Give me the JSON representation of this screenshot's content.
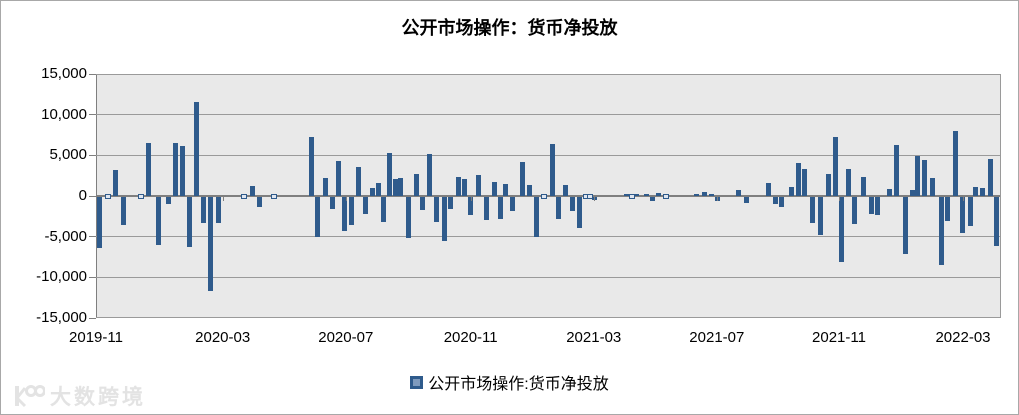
{
  "title": "公开市场操作：货币净投放",
  "legend": {
    "label": "公开市场操作:货币净投放"
  },
  "watermark": {
    "text": "大数跨境",
    "icon": "double-circle-logo"
  },
  "colors": {
    "bar": "#2f5b8c",
    "plot_bg": "#e9e9e9",
    "grid": "#9a9a9a",
    "axis": "#7f7f7f",
    "tiny_fill": "#dfe6f0",
    "watermark": "#e3e3e3"
  },
  "chart_data": {
    "type": "bar",
    "title": "公开市场操作：货币净投放",
    "series_name": "公开市场操作:货币净投放",
    "xlabel": "",
    "ylabel": "",
    "ylim": [
      -15000,
      15000
    ],
    "grid": true,
    "legend_position": "bottom",
    "y_ticks": [
      15000,
      10000,
      5000,
      0,
      -5000,
      -10000,
      -15000
    ],
    "y_tick_labels": [
      "15,000",
      "10,000",
      "5,000",
      "0",
      "-5,000",
      "-10,000",
      "-15,000"
    ],
    "x_tick_labels": [
      "2019-11",
      "2020-03",
      "2020-07",
      "2020-11",
      "2021-03",
      "2021-07",
      "2021-11",
      "2022-03"
    ],
    "x_tick_pos_pct": [
      0,
      14.0,
      27.6,
      41.4,
      55.0,
      68.6,
      82.1,
      95.8
    ],
    "bars_format": "[x_percent_of_plot_width, value]",
    "bars": [
      [
        0.4,
        -6300
      ],
      [
        1.3,
        -150
      ],
      [
        2.2,
        3200
      ],
      [
        3.0,
        -3500
      ],
      [
        5.0,
        -100
      ],
      [
        5.8,
        6500
      ],
      [
        6.9,
        -5900
      ],
      [
        8.0,
        -900
      ],
      [
        8.8,
        6500
      ],
      [
        9.6,
        6200
      ],
      [
        10.3,
        -6100
      ],
      [
        11.1,
        11500
      ],
      [
        11.9,
        -3200
      ],
      [
        12.7,
        -11500
      ],
      [
        13.5,
        -3200
      ],
      [
        16.4,
        -100
      ],
      [
        17.3,
        1200
      ],
      [
        18.1,
        -1200
      ],
      [
        19.7,
        -100
      ],
      [
        23.8,
        7200
      ],
      [
        24.5,
        -4900
      ],
      [
        25.4,
        2250
      ],
      [
        26.1,
        -1500
      ],
      [
        26.8,
        4300
      ],
      [
        27.5,
        -4200
      ],
      [
        28.2,
        -3500
      ],
      [
        29.0,
        3600
      ],
      [
        29.8,
        -2050
      ],
      [
        30.5,
        1000
      ],
      [
        31.2,
        1650
      ],
      [
        31.8,
        -3100
      ],
      [
        32.4,
        5300
      ],
      [
        33.1,
        2050
      ],
      [
        33.7,
        2250
      ],
      [
        34.5,
        -5050
      ],
      [
        35.4,
        2650
      ],
      [
        36.1,
        -1650
      ],
      [
        36.8,
        5200
      ],
      [
        37.6,
        -3100
      ],
      [
        38.5,
        -5450
      ],
      [
        39.2,
        -1450
      ],
      [
        40.0,
        2350
      ],
      [
        40.7,
        2050
      ],
      [
        41.4,
        -2250
      ],
      [
        42.3,
        2550
      ],
      [
        43.1,
        -2850
      ],
      [
        44.0,
        1750
      ],
      [
        44.7,
        -2650
      ],
      [
        45.3,
        1450
      ],
      [
        46.0,
        -1750
      ],
      [
        47.1,
        4200
      ],
      [
        47.9,
        1350
      ],
      [
        48.7,
        -4900
      ],
      [
        49.5,
        -150
      ],
      [
        50.4,
        6400
      ],
      [
        51.1,
        -2650
      ],
      [
        51.9,
        1350
      ],
      [
        52.6,
        -1750
      ],
      [
        53.4,
        -3800
      ],
      [
        54.1,
        -150
      ],
      [
        54.6,
        -100
      ],
      [
        55.1,
        -400
      ],
      [
        58.6,
        300
      ],
      [
        59.2,
        -200
      ],
      [
        59.7,
        300
      ],
      [
        60.8,
        250
      ],
      [
        61.5,
        -450
      ],
      [
        62.2,
        400
      ],
      [
        63.0,
        -200
      ],
      [
        66.3,
        300
      ],
      [
        67.2,
        500
      ],
      [
        68.0,
        300
      ],
      [
        68.7,
        -550
      ],
      [
        71.0,
        700
      ],
      [
        71.9,
        -700
      ],
      [
        74.3,
        1550
      ],
      [
        75.1,
        -800
      ],
      [
        75.8,
        -1250
      ],
      [
        76.8,
        1100
      ],
      [
        77.6,
        4000
      ],
      [
        78.3,
        3300
      ],
      [
        79.2,
        -3150
      ],
      [
        80.1,
        -4700
      ],
      [
        80.9,
        2750
      ],
      [
        81.7,
        7250
      ],
      [
        82.4,
        -8050
      ],
      [
        83.1,
        3300
      ],
      [
        83.8,
        -3300
      ],
      [
        84.8,
        2350
      ],
      [
        85.7,
        -2050
      ],
      [
        86.3,
        -2250
      ],
      [
        87.7,
        900
      ],
      [
        88.5,
        6270
      ],
      [
        89.4,
        -6970
      ],
      [
        90.2,
        700
      ],
      [
        90.8,
        4900
      ],
      [
        91.6,
        4400
      ],
      [
        92.4,
        2170
      ],
      [
        93.4,
        -8300
      ],
      [
        94.1,
        -3000
      ],
      [
        95.0,
        8000
      ],
      [
        95.8,
        -4400
      ],
      [
        96.6,
        -3550
      ],
      [
        97.2,
        1100
      ],
      [
        98.0,
        950
      ],
      [
        98.8,
        4500
      ],
      [
        99.5,
        -6000
      ]
    ]
  }
}
